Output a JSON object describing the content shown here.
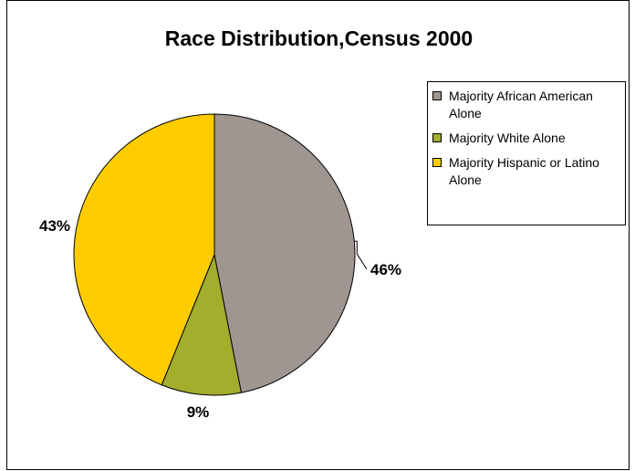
{
  "chart_data": {
    "type": "pie",
    "title": "Race Distribution,Census 2000",
    "categories": [
      "Majority African American Alone",
      "Majority White Alone",
      "Majority Hispanic or Latino Alone"
    ],
    "values": [
      46,
      9,
      43
    ],
    "labels": [
      "46%",
      "9%",
      "43%"
    ],
    "colors": [
      "#9f9591",
      "#a2ae2c",
      "#ffcc00"
    ],
    "legend_placement": "right",
    "slice_outline": "#000000"
  }
}
